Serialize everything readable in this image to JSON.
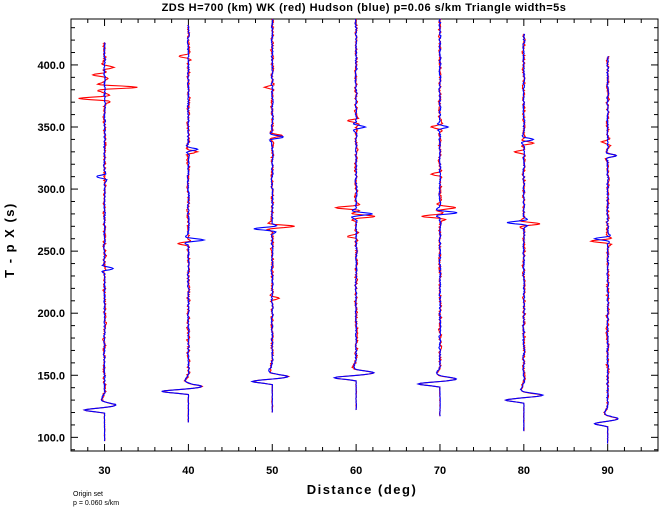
{
  "chart_data": {
    "type": "line",
    "title": "ZDS H=700 (km) WK (red) Hudson (blue) p=0.06 s/km Triangle width=5s",
    "xlabel": "Distance (deg)",
    "ylabel": "T - p X (s)",
    "xlim": [
      26,
      96
    ],
    "ylim": [
      89,
      437
    ],
    "xticks": [
      "30",
      "40",
      "50",
      "60",
      "70",
      "80",
      "90"
    ],
    "yticks": [
      "100.0",
      "150.0",
      "200.0",
      "250.0",
      "300.0",
      "350.0",
      "400.0"
    ],
    "ytick_values": [
      100,
      150,
      200,
      250,
      300,
      350,
      400
    ],
    "grid": false,
    "series": [
      {
        "name": "WK",
        "color": "#ff0000"
      },
      {
        "name": "Hudson",
        "color": "#0000ff"
      }
    ],
    "traces": [
      {
        "distance": 30,
        "t_start": 97,
        "t_end": 418,
        "onset": 122,
        "onset_amp": -2.4,
        "rebound_amp": 1.4,
        "red_bursts": [
          [
            382,
            3.8
          ],
          [
            392,
            -1.6
          ],
          [
            398,
            1.2
          ],
          [
            373,
            -3.0
          ]
        ],
        "blue_bursts": [
          [
            310,
            -1.0
          ],
          [
            236,
            1.0
          ]
        ]
      },
      {
        "distance": 40,
        "t_start": 112,
        "t_end": 432,
        "onset": 137,
        "onset_amp": -3.2,
        "rebound_amp": 1.6,
        "red_bursts": [
          [
            407,
            -1.2
          ],
          [
            330,
            1.0
          ],
          [
            256,
            -1.2
          ]
        ],
        "blue_bursts": [
          [
            332,
            1.0
          ],
          [
            259,
            1.8
          ]
        ]
      },
      {
        "distance": 50,
        "t_start": 120,
        "t_end": 437,
        "onset": 145,
        "onset_amp": -2.4,
        "rebound_amp": 1.9,
        "red_bursts": [
          [
            382,
            -0.9
          ],
          [
            343,
            1.2
          ],
          [
            270,
            2.6
          ],
          [
            212,
            0.9
          ]
        ],
        "blue_bursts": [
          [
            342,
            1.3
          ],
          [
            268,
            -2.2
          ]
        ]
      },
      {
        "distance": 60,
        "t_start": 122,
        "t_end": 437,
        "onset": 148,
        "onset_amp": -2.6,
        "rebound_amp": 2.2,
        "red_bursts": [
          [
            355,
            -1.0
          ],
          [
            278,
            2.4
          ],
          [
            285,
            -2.4
          ],
          [
            262,
            -1.0
          ]
        ],
        "blue_bursts": [
          [
            350,
            1.1
          ],
          [
            280,
            2.0
          ]
        ]
      },
      {
        "distance": 70,
        "t_start": 117,
        "t_end": 437,
        "onset": 143,
        "onset_amp": -2.6,
        "rebound_amp": 2.0,
        "red_bursts": [
          [
            350,
            -1.0
          ],
          [
            312,
            -1.0
          ],
          [
            278,
            -2.2
          ],
          [
            285,
            1.8
          ]
        ],
        "blue_bursts": [
          [
            350,
            1.0
          ],
          [
            281,
            2.0
          ]
        ]
      },
      {
        "distance": 80,
        "t_start": 105,
        "t_end": 425,
        "onset": 130,
        "onset_amp": -2.2,
        "rebound_amp": 2.2,
        "red_bursts": [
          [
            337,
            1.1
          ],
          [
            330,
            -1.0
          ],
          [
            272,
            1.8
          ]
        ],
        "blue_bursts": [
          [
            340,
            1.1
          ],
          [
            273,
            -2.0
          ]
        ]
      },
      {
        "distance": 90,
        "t_start": 95,
        "t_end": 407,
        "onset": 111,
        "onset_amp": -1.6,
        "rebound_amp": 1.3,
        "red_bursts": [
          [
            338,
            -0.8
          ],
          [
            327,
            1.0
          ],
          [
            258,
            -1.9
          ]
        ],
        "blue_bursts": [
          [
            327,
            1.0
          ],
          [
            260,
            -1.5
          ]
        ]
      }
    ]
  },
  "footer": {
    "origin_line": "Origin set",
    "p_line": "p = 0.060 s/km"
  }
}
